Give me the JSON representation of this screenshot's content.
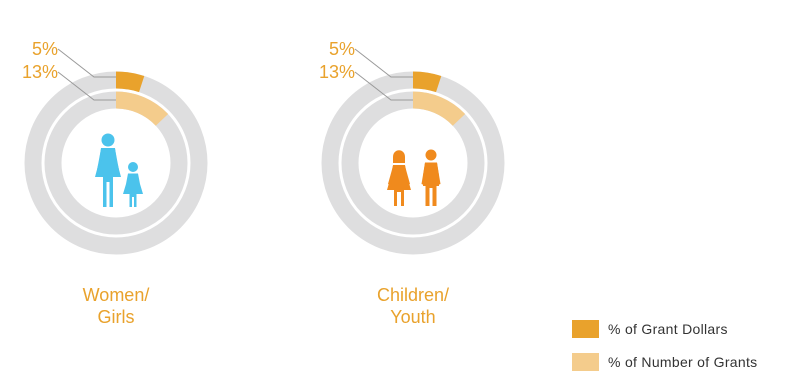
{
  "chart_data": [
    {
      "type": "donut",
      "category": "Women/ Girls",
      "title_lines": [
        "Women/",
        "Girls"
      ],
      "icon": "women-girls-icon",
      "icon_color": "#4BC3EC",
      "series": [
        {
          "name": "% of Grant Dollars",
          "value": 5,
          "label": "5%"
        },
        {
          "name": "% of Number of Grants",
          "value": 13,
          "label": "13%"
        }
      ]
    },
    {
      "type": "donut",
      "category": "Children/ Youth",
      "title_lines": [
        "Children/",
        "Youth"
      ],
      "icon": "children-youth-icon",
      "icon_color": "#F08A1D",
      "series": [
        {
          "name": "% of Grant Dollars",
          "value": 5,
          "label": "5%"
        },
        {
          "name": "% of Number of Grants",
          "value": 13,
          "label": "13%"
        }
      ]
    }
  ],
  "legend": [
    {
      "label": "% of Grant Dollars",
      "color": "#E9A22C"
    },
    {
      "label": "% of Number of Grants",
      "color": "#F4CC8C"
    }
  ],
  "colors": {
    "track": "#DEDEDF",
    "grant_dollars": "#E9A22C",
    "number_of_grants": "#F4CC8C",
    "label_text": "#E9A22C",
    "leader": "#9A9A9A"
  }
}
